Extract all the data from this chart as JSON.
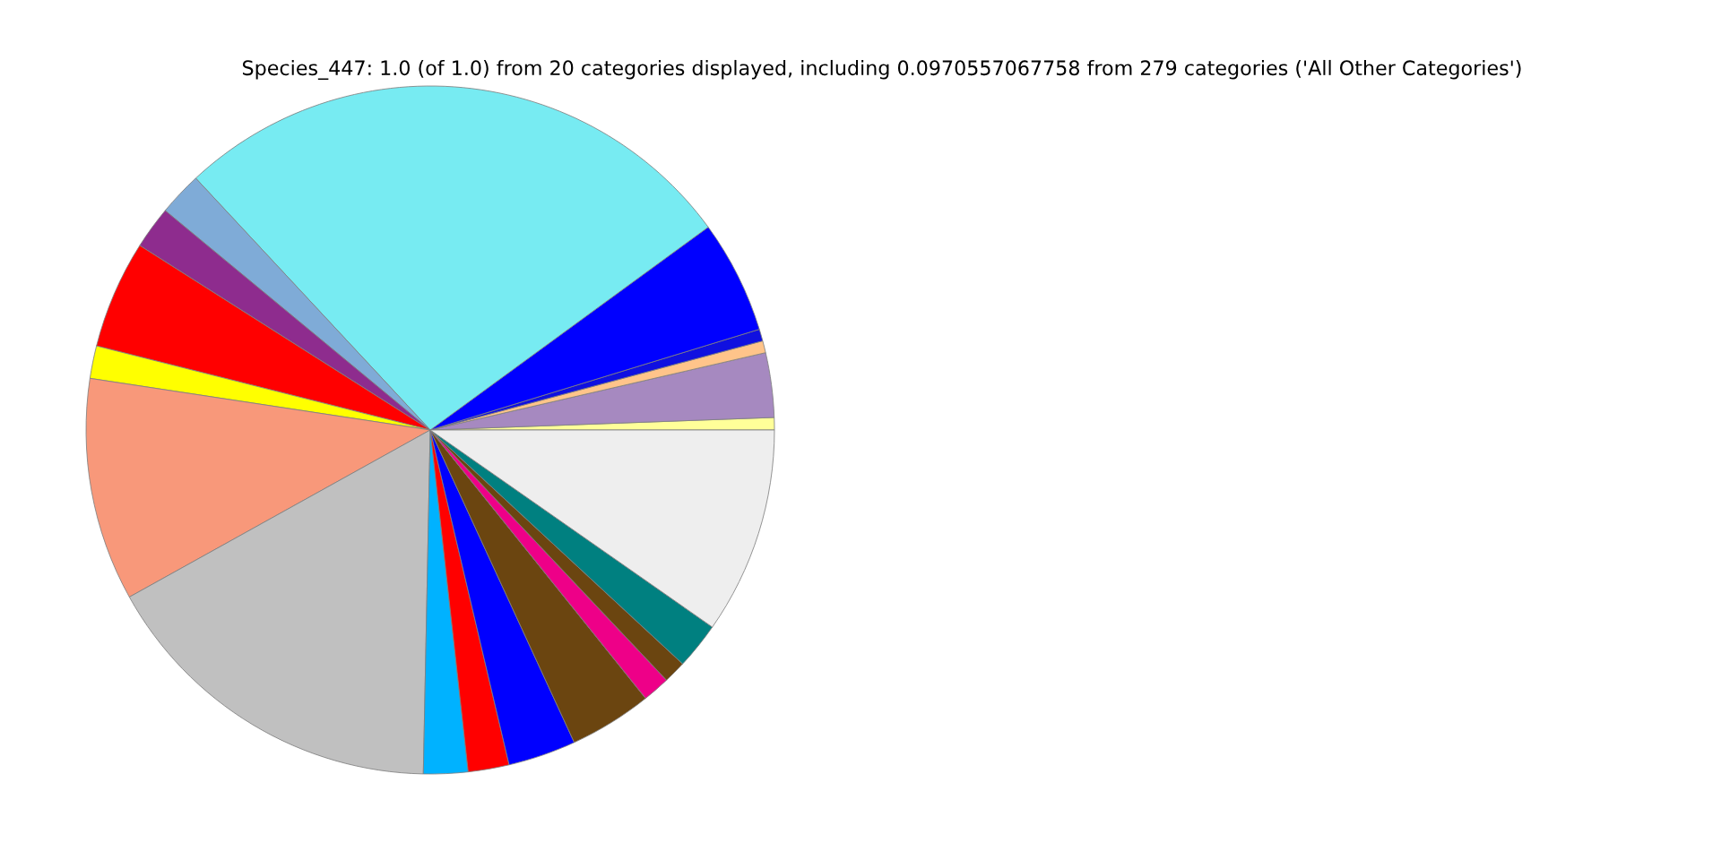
{
  "chart_data": {
    "type": "pie",
    "title": "Species_447: 1.0 (of 1.0) from 20 categories displayed, including 0.0970557067758 from 279 categories ('All Other Categories')",
    "categories": [
      null,
      null,
      null,
      null,
      null,
      null,
      null,
      null,
      null,
      null,
      null,
      null,
      null,
      null,
      null,
      null,
      null,
      null,
      null,
      null
    ],
    "values": [
      0.58,
      3.03,
      0.56,
      0.56,
      5.31,
      26.89,
      2.06,
      2.0,
      5.08,
      1.53,
      10.47,
      16.61,
      2.08,
      1.92,
      3.19,
      3.89,
      1.28,
      1.06,
      2.19,
      9.71
    ],
    "colors": [
      "#ffff99",
      "#a689c0",
      "#ffc48a",
      "#1010e0",
      "#0000ff",
      "#77ebf2",
      "#7fabd7",
      "#8e2c8e",
      "#ff0000",
      "#ffff00",
      "#f8987a",
      "#c0c0c0",
      "#00b2ff",
      "#ff0000",
      "#0000ff",
      "#6b4510",
      "#ee0088",
      "#6b4510",
      "#008080",
      "#eeeeee"
    ]
  }
}
